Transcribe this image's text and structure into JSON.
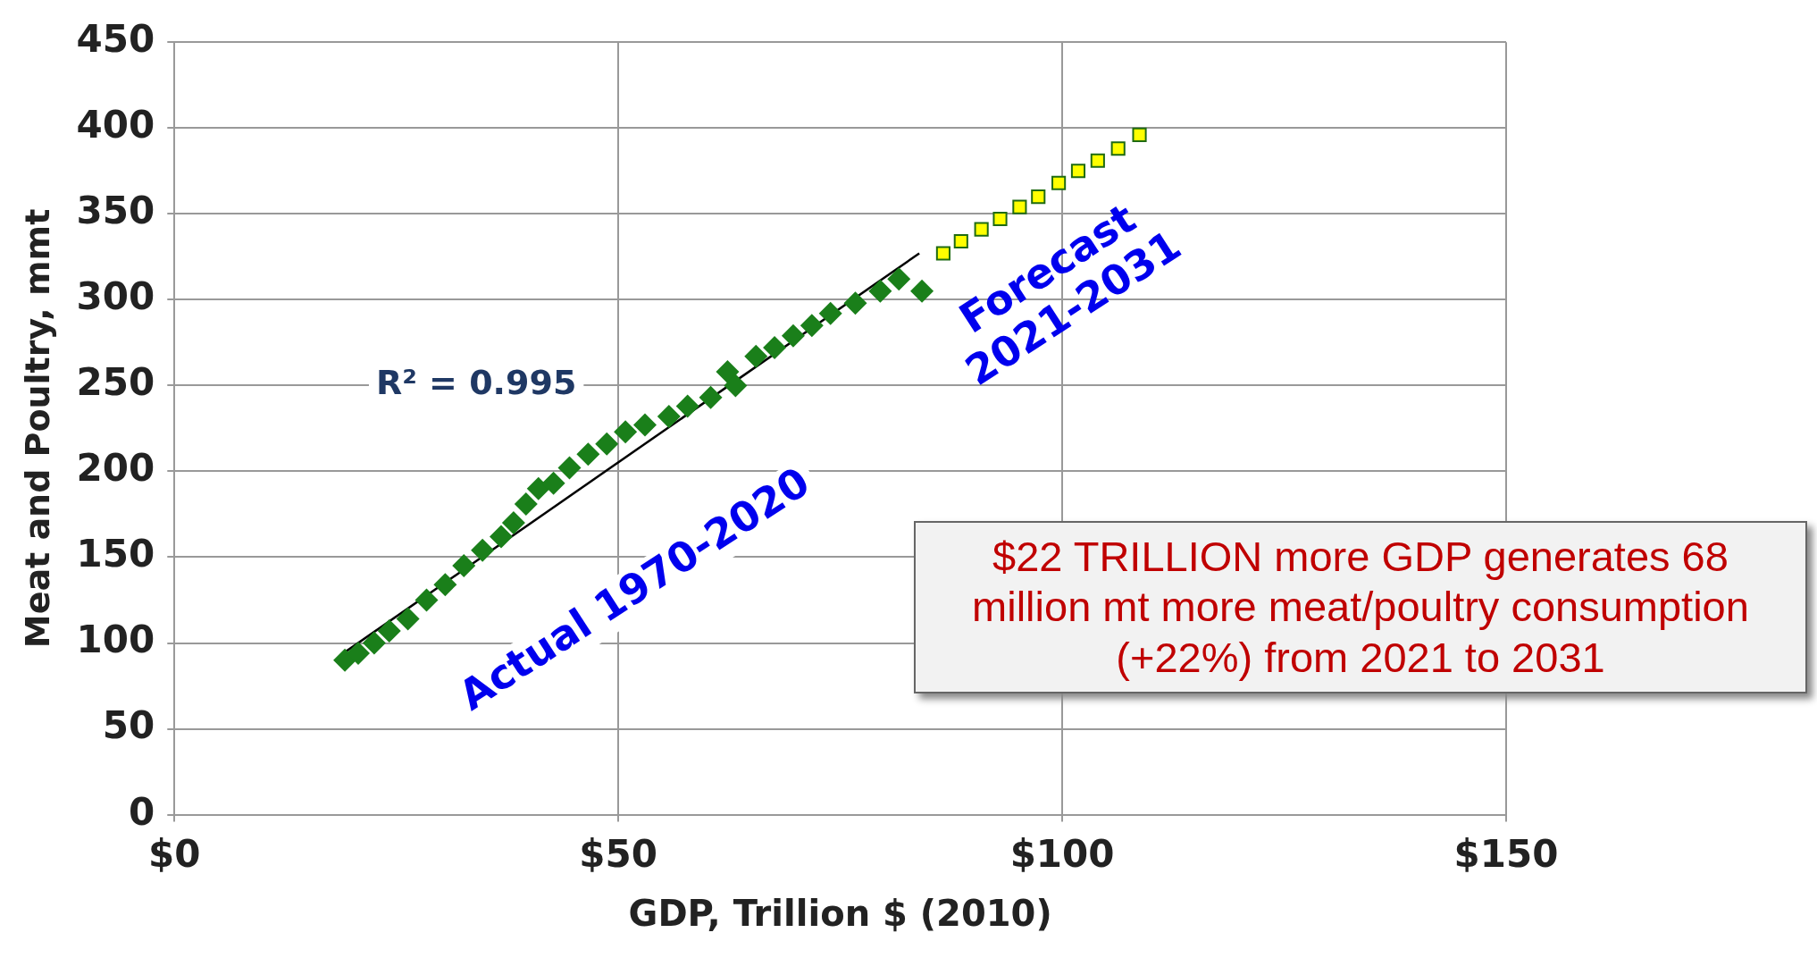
{
  "chart_data": {
    "type": "scatter",
    "xlabel": "GDP, Trillion $ (2010)",
    "ylabel": "Meat and Poultry, mmt",
    "xlim": [
      0,
      150
    ],
    "xticks": [
      {
        "value": 0,
        "label": "$0"
      },
      {
        "value": 50,
        "label": "$50"
      },
      {
        "value": 100,
        "label": "$100"
      },
      {
        "value": 150,
        "label": "$150"
      }
    ],
    "ylim": [
      0,
      450
    ],
    "yticks": [
      0,
      50,
      100,
      150,
      200,
      250,
      300,
      350,
      400,
      450
    ],
    "grid": true,
    "legend": false,
    "series": [
      {
        "type": "scatter",
        "marker": "diamond",
        "color": "#1a7f1a",
        "x": [
          19.2,
          20.7,
          22.5,
          24.2,
          26.3,
          28.4,
          30.5,
          32.6,
          34.7,
          36.8,
          38.2,
          39.6,
          41.0,
          42.7,
          44.5,
          46.6,
          48.7,
          50.8,
          53.0,
          55.7,
          57.8,
          60.4,
          62.3,
          63.2,
          65.5,
          67.6,
          69.7,
          71.8,
          73.9,
          76.7,
          79.5,
          81.6,
          84.2
        ],
        "values": [
          90,
          94,
          100,
          107,
          114,
          125,
          134,
          145,
          154,
          162,
          170,
          181,
          190,
          193,
          202,
          210,
          216,
          223,
          227,
          232,
          238,
          243,
          258,
          250,
          267,
          272,
          279,
          285,
          292,
          298,
          305,
          312,
          305
        ]
      },
      {
        "type": "scatter",
        "marker": "square",
        "color": "#ffff00",
        "x": [
          86.6,
          88.6,
          90.9,
          93.0,
          95.2,
          97.3,
          99.6,
          101.8,
          104.0,
          106.3,
          108.7
        ],
        "values": [
          327,
          334,
          341,
          347,
          354,
          360,
          368,
          375,
          381,
          388,
          396
        ]
      },
      {
        "type": "line",
        "marker": "none",
        "color": "#000000",
        "x": [
          19.3,
          83.9
        ],
        "values": [
          95,
          327
        ]
      }
    ],
    "annotations": [
      "R² = 0.995",
      "Actual 1970-2020",
      "Forecast 2021-2031",
      "$22 TRILLION more GDP generates 68 million mt more meat/poultry consumption (+22%) from 2021 to 2031"
    ]
  }
}
